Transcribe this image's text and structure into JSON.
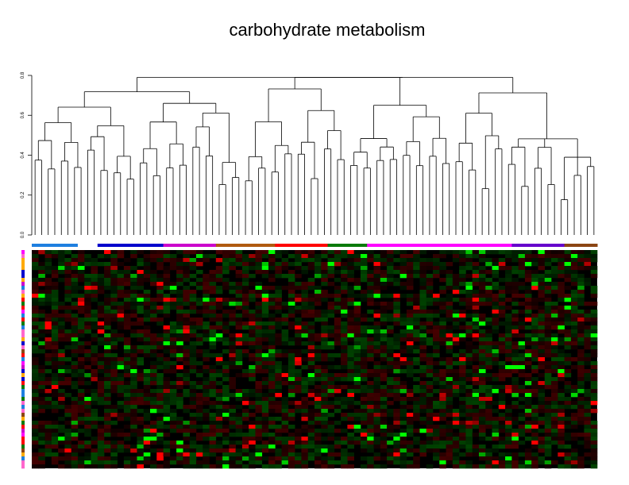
{
  "chart_data": {
    "type": "heatmap",
    "title": "carbohydrate metabolism",
    "dendrogram": {
      "yaxis": {
        "ticks": [
          0.0,
          0.2,
          0.4,
          0.6,
          0.8
        ],
        "tick_labels": [
          "0.0",
          "0.2",
          "0.4",
          "0.6",
          "0.8"
        ],
        "range": [
          0.0,
          0.8
        ]
      },
      "leaf_count": 86
    },
    "heatmap": {
      "columns": 86,
      "rows": 55,
      "colormap": [
        "#00ff00",
        "#000000",
        "#ff0000"
      ],
      "value_range": [
        -1,
        1
      ]
    },
    "column_groups": [
      {
        "color": "#1e7fe0",
        "count": 7
      },
      {
        "color": "#ffffff",
        "count": 3
      },
      {
        "color": "#0000cc",
        "count": 10
      },
      {
        "color": "#cc00cc",
        "count": 8
      },
      {
        "color": "#b05a10",
        "count": 9
      },
      {
        "color": "#ff0000",
        "count": 8
      },
      {
        "color": "#0a7a0a",
        "count": 6
      },
      {
        "color": "#ff00ff",
        "count": 22
      },
      {
        "color": "#6600cc",
        "count": 8
      },
      {
        "color": "#8b4513",
        "count": 5
      }
    ],
    "row_color_palette": [
      "#1e7fe0",
      "#ff00ff",
      "#ff0000",
      "#0a7a0a",
      "#0000cc",
      "#ffaa00",
      "#cc00cc",
      "#8b4513",
      "#ff66cc"
    ]
  }
}
